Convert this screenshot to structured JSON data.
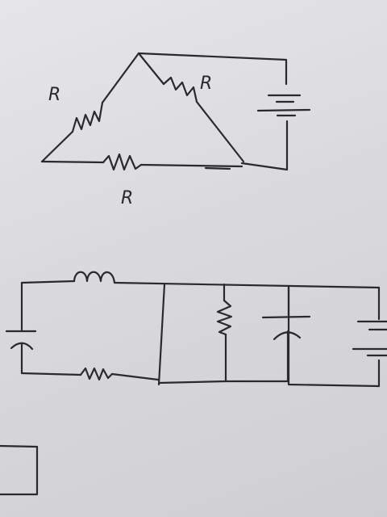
{
  "diagram_top": {
    "labels": {
      "left_resistor": "R",
      "right_resistor": "R",
      "bottom_resistor": "R"
    }
  },
  "diagram_bottom": {
    "components": [
      "inductor",
      "resistor",
      "resistor",
      "capacitor",
      "capacitor",
      "battery"
    ]
  },
  "colors": {
    "ink": "#2a2a2e",
    "paper": "#dcdcde"
  }
}
